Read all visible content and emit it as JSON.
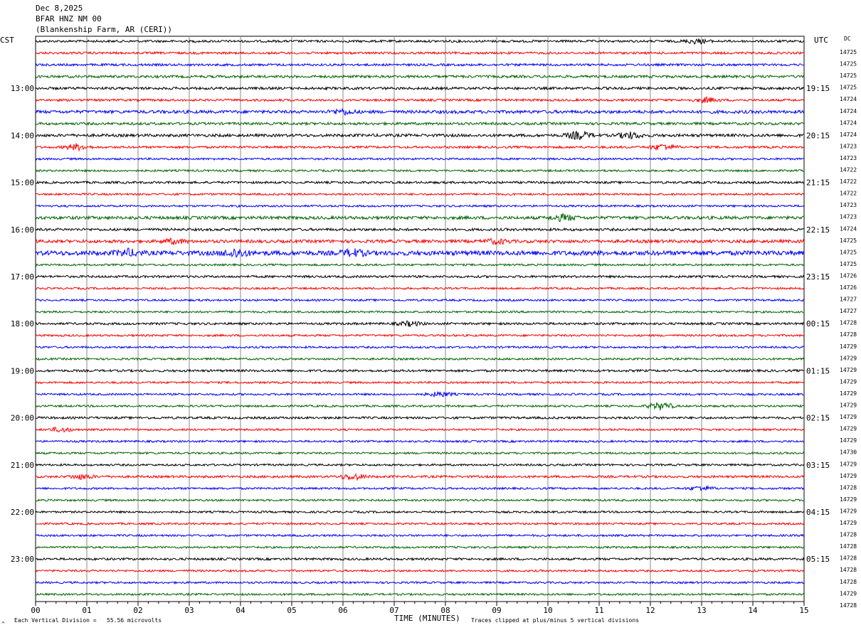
{
  "header": {
    "date": "Dec 8,2025",
    "station": "BFAR HNZ NM 00",
    "location": "(Blankenship Farm, AR (CERI))"
  },
  "left_label": "CST",
  "right_label": "UTC",
  "dc_label": "DC",
  "footer": {
    "scale_text": "Each Vertical Division =   55.56 microvolts",
    "xlabel": "TIME (MINUTES)",
    "clip_text": "Traces clipped at plus/minus 5 vertical divisions",
    "corner_mark": "^"
  },
  "colors": {
    "trace_cycle": [
      "#000000",
      "#ff0000",
      "#0000ff",
      "#006400"
    ],
    "grid": "#888888"
  },
  "chart_data": {
    "type": "line",
    "title": "",
    "xlabel": "TIME (MINUTES)",
    "x_ticks": [
      "00",
      "01",
      "02",
      "03",
      "04",
      "05",
      "06",
      "07",
      "08",
      "09",
      "10",
      "11",
      "12",
      "13",
      "14",
      "15"
    ],
    "xlim": [
      0,
      15
    ],
    "left_hour_labels": [
      {
        "row": 4,
        "label": "13:00"
      },
      {
        "row": 8,
        "label": "14:00"
      },
      {
        "row": 12,
        "label": "15:00"
      },
      {
        "row": 16,
        "label": "16:00"
      },
      {
        "row": 20,
        "label": "17:00"
      },
      {
        "row": 24,
        "label": "18:00"
      },
      {
        "row": 28,
        "label": "19:00"
      },
      {
        "row": 32,
        "label": "20:00"
      },
      {
        "row": 36,
        "label": "21:00"
      },
      {
        "row": 40,
        "label": "22:00"
      },
      {
        "row": 44,
        "label": "23:00"
      }
    ],
    "right_hour_labels": [
      {
        "row": 4,
        "label": "19:15"
      },
      {
        "row": 8,
        "label": "20:15"
      },
      {
        "row": 12,
        "label": "21:15"
      },
      {
        "row": 16,
        "label": "22:15"
      },
      {
        "row": 20,
        "label": "23:15"
      },
      {
        "row": 24,
        "label": "00:15"
      },
      {
        "row": 28,
        "label": "01:15"
      },
      {
        "row": 32,
        "label": "02:15"
      },
      {
        "row": 36,
        "label": "03:15"
      },
      {
        "row": 40,
        "label": "04:15"
      },
      {
        "row": 44,
        "label": "05:15"
      }
    ],
    "dc_offsets": [
      "14725",
      "14725",
      "14725",
      "14725",
      "14724",
      "14724",
      "14724",
      "14724",
      "14723",
      "14723",
      "14722",
      "14722",
      "14722",
      "14723",
      "14723",
      "14724",
      "14725",
      "14725",
      "14725",
      "14726",
      "14726",
      "14727",
      "14727",
      "14728",
      "14728",
      "14729",
      "14729",
      "14729",
      "14729",
      "14729",
      "14729",
      "14729",
      "14729",
      "14729",
      "14730",
      "14729",
      "14729",
      "14728",
      "14729",
      "14729",
      "14729",
      "14728",
      "14728",
      "14728",
      "14728",
      "14728",
      "14729",
      "14728"
    ],
    "row_amplitudes": [
      1.6,
      1.6,
      1.6,
      1.8,
      1.8,
      1.6,
      2.2,
      1.8,
      2.0,
      1.6,
      1.4,
      1.4,
      1.6,
      1.4,
      1.4,
      2.2,
      1.8,
      2.2,
      3.2,
      1.4,
      1.6,
      1.4,
      1.4,
      1.4,
      1.6,
      1.4,
      1.4,
      1.4,
      1.6,
      1.4,
      1.4,
      1.4,
      1.6,
      1.4,
      1.4,
      1.4,
      1.4,
      1.6,
      1.4,
      1.4,
      1.4,
      1.4,
      1.4,
      1.4,
      1.6,
      1.4,
      1.4,
      1.4
    ],
    "bursts": [
      {
        "row": 0,
        "minute": 12.9,
        "amplitude": 3
      },
      {
        "row": 5,
        "minute": 13.1,
        "amplitude": 3
      },
      {
        "row": 6,
        "minute": 6.0,
        "amplitude": 3
      },
      {
        "row": 8,
        "minute": 10.6,
        "amplitude": 5
      },
      {
        "row": 8,
        "minute": 11.6,
        "amplitude": 4
      },
      {
        "row": 9,
        "minute": 0.8,
        "amplitude": 4
      },
      {
        "row": 9,
        "minute": 12.25,
        "amplitude": 4
      },
      {
        "row": 15,
        "minute": 10.3,
        "amplitude": 4
      },
      {
        "row": 17,
        "minute": 2.7,
        "amplitude": 3
      },
      {
        "row": 17,
        "minute": 9.0,
        "amplitude": 3
      },
      {
        "row": 18,
        "minute": 1.8,
        "amplitude": 4
      },
      {
        "row": 18,
        "minute": 3.9,
        "amplitude": 5
      },
      {
        "row": 18,
        "minute": 6.2,
        "amplitude": 4
      },
      {
        "row": 24,
        "minute": 7.3,
        "amplitude": 3
      },
      {
        "row": 30,
        "minute": 7.9,
        "amplitude": 3
      },
      {
        "row": 31,
        "minute": 12.2,
        "amplitude": 5
      },
      {
        "row": 33,
        "minute": 0.5,
        "amplitude": 3
      },
      {
        "row": 37,
        "minute": 0.9,
        "amplitude": 3
      },
      {
        "row": 37,
        "minute": 6.2,
        "amplitude": 4
      },
      {
        "row": 38,
        "minute": 13.0,
        "amplitude": 3
      }
    ]
  }
}
